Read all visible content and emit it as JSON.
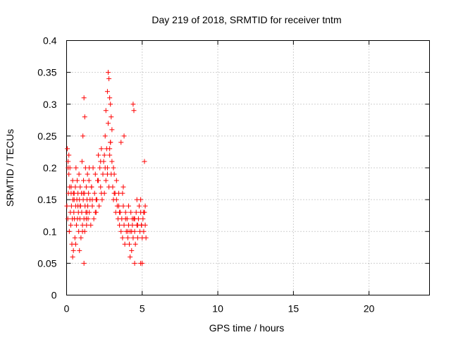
{
  "chart_data": {
    "type": "scatter",
    "title": "Day 219 of 2018, SRMTID for receiver tntm",
    "xlabel": "GPS time / hours",
    "ylabel": "SRMTID / TECUs",
    "xlim": [
      0,
      24
    ],
    "ylim": [
      0,
      0.4
    ],
    "xticks": [
      0,
      5,
      10,
      15,
      20
    ],
    "xtick_labels": [
      "0",
      "5",
      "10",
      "15",
      "20"
    ],
    "yticks": [
      0,
      0.05,
      0.1,
      0.15,
      0.2,
      0.25,
      0.3,
      0.35,
      0.4
    ],
    "ytick_labels": [
      "0",
      "0.05",
      "0.1",
      "0.15",
      "0.2",
      "0.25",
      "0.3",
      "0.35",
      "0.4"
    ],
    "grid": true,
    "marker": "+",
    "series": [
      {
        "name": "SRMTID",
        "color": "#ff0000",
        "x": [
          0.02,
          0.05,
          0.08,
          0.1,
          0.12,
          0.15,
          0.18,
          0.2,
          0.22,
          0.25,
          0.28,
          0.3,
          0.32,
          0.35,
          0.38,
          0.4,
          0.42,
          0.45,
          0.48,
          0.5,
          0.52,
          0.55,
          0.58,
          0.6,
          0.62,
          0.65,
          0.68,
          0.7,
          0.72,
          0.75,
          0.78,
          0.8,
          0.82,
          0.85,
          0.88,
          0.9,
          0.92,
          0.95,
          0.98,
          1.0,
          1.02,
          1.05,
          1.08,
          1.1,
          1.12,
          1.15,
          1.18,
          1.2,
          1.22,
          1.25,
          1.28,
          1.3,
          1.32,
          1.35,
          1.38,
          1.4,
          1.42,
          1.45,
          1.48,
          1.5,
          1.55,
          1.6,
          1.65,
          1.7,
          1.75,
          1.8,
          1.85,
          1.9,
          1.95,
          2.0,
          2.05,
          2.1,
          2.15,
          2.2,
          2.25,
          2.3,
          2.35,
          2.4,
          2.45,
          2.5,
          2.55,
          2.6,
          2.65,
          2.7,
          2.75,
          2.8,
          2.85,
          2.9,
          2.95,
          3.0,
          3.05,
          3.1,
          3.15,
          3.2,
          3.25,
          3.3,
          3.35,
          3.4,
          3.45,
          3.5,
          3.55,
          3.6,
          3.65,
          3.7,
          3.75,
          3.8,
          3.85,
          3.9,
          3.95,
          4.0,
          4.05,
          4.1,
          4.15,
          4.2,
          4.25,
          4.3,
          4.35,
          4.4,
          4.45,
          4.5,
          4.55,
          4.6,
          4.65,
          4.7,
          4.75,
          4.8,
          4.85,
          4.9,
          4.95,
          5.0,
          5.05,
          5.1,
          5.15,
          5.2,
          5.25,
          0.1,
          0.3,
          0.5,
          0.7,
          0.9,
          1.1,
          1.3,
          1.5,
          1.7,
          1.9,
          2.1,
          2.3,
          2.5,
          2.7,
          2.9,
          3.1,
          3.3,
          3.5,
          3.7,
          3.9,
          4.1,
          4.3,
          4.5,
          4.7,
          4.9,
          5.1,
          0.15,
          0.45,
          0.75,
          1.05,
          1.35,
          1.65,
          1.95,
          2.25,
          2.55,
          2.85,
          3.15,
          3.45,
          3.75,
          4.05,
          4.35,
          4.65,
          4.95,
          5.2,
          2.75,
          2.8,
          2.85,
          2.9,
          2.95,
          4.4,
          4.45,
          1.15,
          1.2,
          0.4,
          0.6,
          0.85,
          1.15,
          2.6,
          2.7,
          3.0,
          3.6,
          3.8,
          4.2,
          4.5,
          4.9,
          5.0,
          5.15
        ],
        "y": [
          0.14,
          0.23,
          0.12,
          0.21,
          0.16,
          0.19,
          0.1,
          0.17,
          0.2,
          0.13,
          0.11,
          0.16,
          0.14,
          0.08,
          0.12,
          0.18,
          0.15,
          0.07,
          0.13,
          0.16,
          0.12,
          0.09,
          0.17,
          0.14,
          0.2,
          0.11,
          0.15,
          0.18,
          0.12,
          0.16,
          0.13,
          0.1,
          0.19,
          0.15,
          0.12,
          0.17,
          0.14,
          0.09,
          0.16,
          0.13,
          0.21,
          0.11,
          0.25,
          0.15,
          0.18,
          0.12,
          0.16,
          0.1,
          0.14,
          0.2,
          0.13,
          0.17,
          0.11,
          0.15,
          0.19,
          0.14,
          0.12,
          0.16,
          0.18,
          0.13,
          0.15,
          0.11,
          0.17,
          0.14,
          0.2,
          0.12,
          0.16,
          0.19,
          0.13,
          0.15,
          0.18,
          0.22,
          0.14,
          0.2,
          0.17,
          0.23,
          0.15,
          0.19,
          0.21,
          0.16,
          0.25,
          0.18,
          0.23,
          0.2,
          0.27,
          0.17,
          0.22,
          0.24,
          0.19,
          0.21,
          0.17,
          0.15,
          0.19,
          0.16,
          0.13,
          0.18,
          0.14,
          0.12,
          0.16,
          0.11,
          0.13,
          0.1,
          0.12,
          0.09,
          0.14,
          0.11,
          0.08,
          0.13,
          0.1,
          0.12,
          0.09,
          0.11,
          0.08,
          0.1,
          0.13,
          0.07,
          0.11,
          0.09,
          0.12,
          0.1,
          0.08,
          0.13,
          0.11,
          0.09,
          0.12,
          0.14,
          0.1,
          0.13,
          0.11,
          0.09,
          0.12,
          0.1,
          0.13,
          0.11,
          0.09,
          0.2,
          0.17,
          0.15,
          0.18,
          0.14,
          0.16,
          0.12,
          0.2,
          0.15,
          0.13,
          0.18,
          0.16,
          0.22,
          0.19,
          0.24,
          0.2,
          0.15,
          0.13,
          0.16,
          0.12,
          0.14,
          0.1,
          0.12,
          0.11,
          0.15,
          0.13,
          0.22,
          0.16,
          0.14,
          0.1,
          0.13,
          0.17,
          0.15,
          0.21,
          0.2,
          0.23,
          0.16,
          0.14,
          0.17,
          0.1,
          0.12,
          0.15,
          0.11,
          0.14,
          0.35,
          0.34,
          0.31,
          0.3,
          0.28,
          0.3,
          0.29,
          0.31,
          0.28,
          0.06,
          0.08,
          0.07,
          0.05,
          0.29,
          0.32,
          0.26,
          0.24,
          0.25,
          0.06,
          0.05,
          0.05,
          0.05,
          0.21
        ]
      }
    ]
  }
}
